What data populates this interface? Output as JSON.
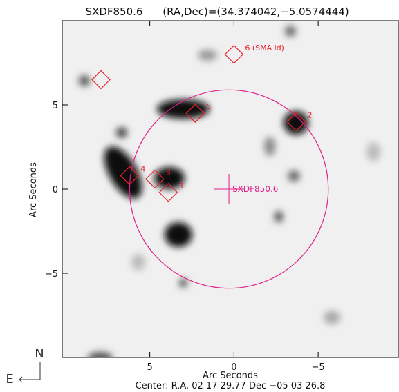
{
  "chart_data": {
    "type": "scatter",
    "title": "SXDF850.6",
    "subtitle": "(RA,Dec)=(34.374042,−5.0574444)",
    "xlabel": "Arc Seconds",
    "ylabel": "Arc Seconds",
    "footer": "Center:  R.A. 02 17 29.77    Dec  −05 03 26.8",
    "compass": [
      "N",
      "E"
    ],
    "xlim": [
      10.2,
      -9.8
    ],
    "ylim": [
      -10,
      10
    ],
    "xticks": [
      5,
      0,
      {
        "value": -5,
        "label": "−5"
      }
    ],
    "yticks": [
      5,
      0,
      {
        "value": -5,
        "label": "−5"
      }
    ],
    "color": "#e8202a",
    "x": [
      7.9,
      0.0,
      2.3,
      -3.7,
      6.2,
      4.7,
      3.9
    ],
    "values": [
      6.5,
      8.0,
      4.5,
      4.0,
      0.8,
      0.6,
      -0.2
    ],
    "labels": [
      null,
      "6 (SMA id)",
      "5",
      "2",
      "4",
      "3",
      "1"
    ],
    "target": {
      "name": "SXDF850.6",
      "x": 0.3,
      "y": 0,
      "radius": 5.9,
      "color": "#e0208a"
    }
  }
}
